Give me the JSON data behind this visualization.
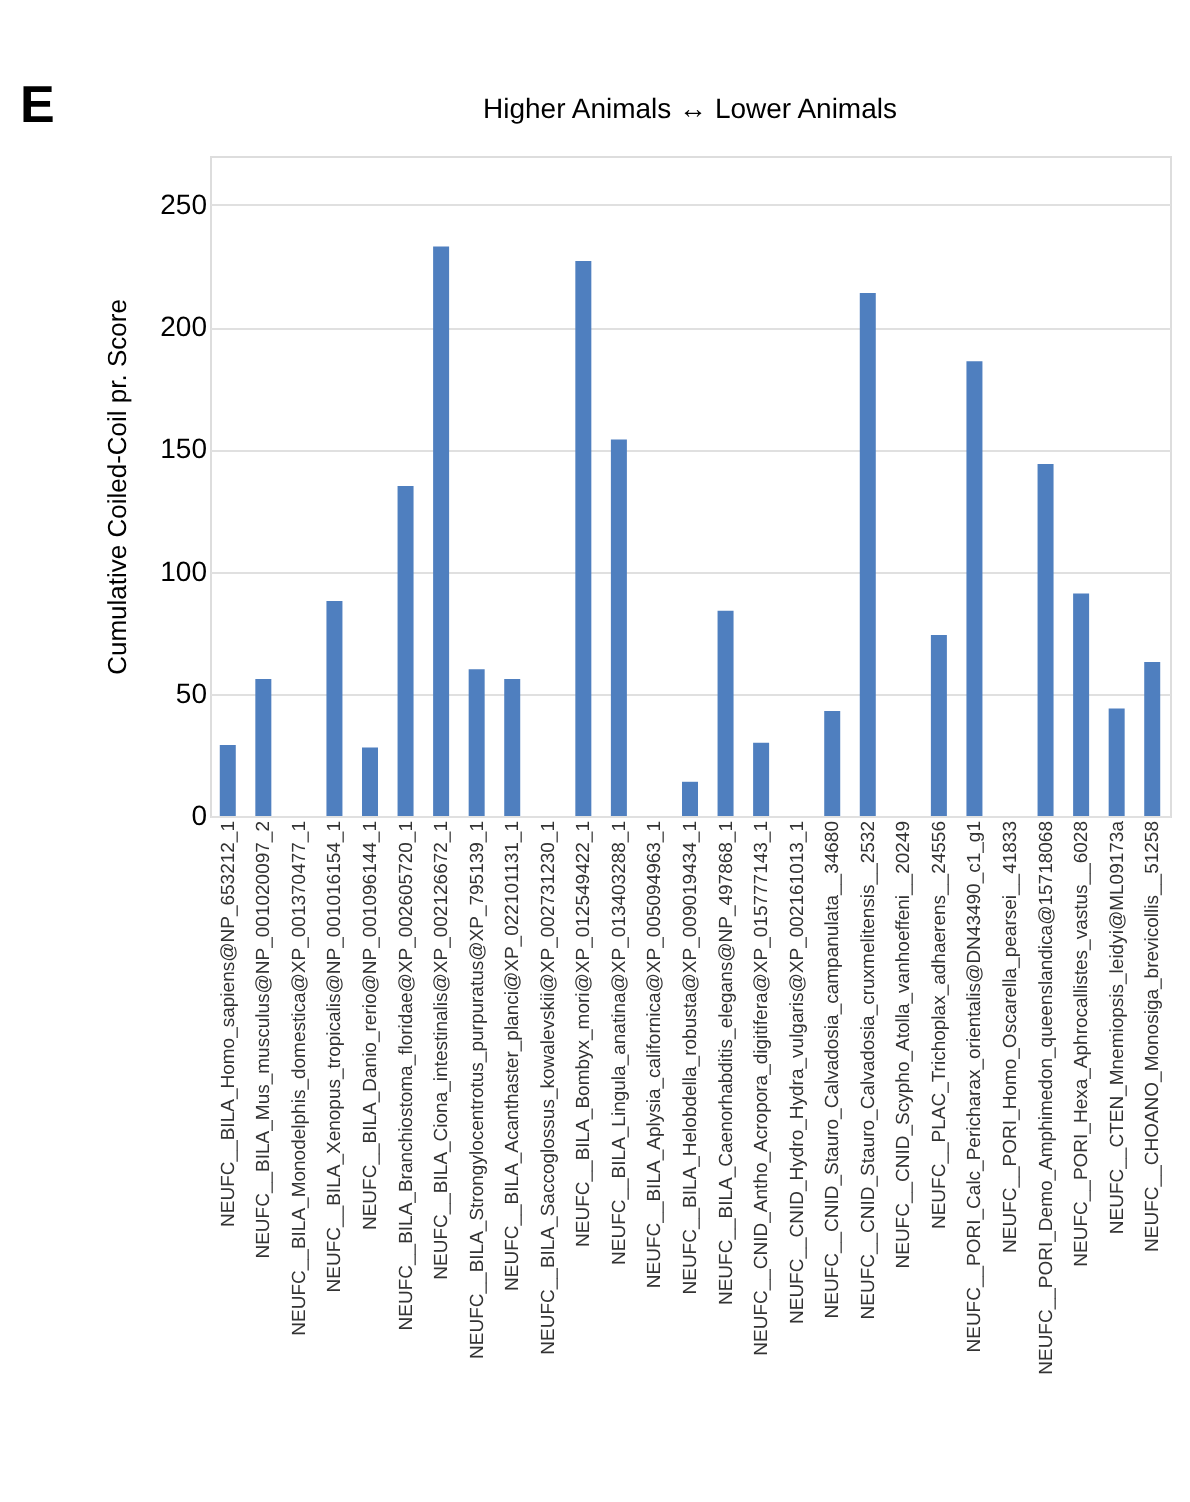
{
  "chart_data": {
    "type": "bar",
    "title": "Higher Animals ↔ Lower Animals",
    "ylabel": "Cumulative Coiled-Coil pr. Score",
    "annotations": [
      "E"
    ],
    "categories": [
      "NEUFC__BILA_Homo_sapiens@NP_653212_1",
      "NEUFC__BILA_Mus_musculus@NP_001020097_2",
      "NEUFC__BILA_Monodelphis_domestica@XP_001370477_1",
      "NEUFC__BILA_Xenopus_tropicalis@NP_001016154_1",
      "NEUFC__BILA_Danio_rerio@NP_001096144_1",
      "NEUFC__BILA_Branchiostoma_floridae@XP_002605720_1",
      "NEUFC__BILA_Ciona_intestinalis@XP_002126672_1",
      "NEUFC__BILA_Strongylocentrotus_purpuratus@XP_795139_1",
      "NEUFC__BILA_Acanthaster_planci@XP_022101131_1",
      "NEUFC__BILA_Saccoglossus_kowalevskii@XP_002731230_1",
      "NEUFC__BILA_Bombyx_mori@XP_012549422_1",
      "NEUFC__BILA_Lingula_anatina@XP_013403288_1",
      "NEUFC__BILA_Aplysia_californica@XP_005094963_1",
      "NEUFC__BILA_Helobdella_robusta@XP_009019434_1",
      "NEUFC__BILA_Caenorhabditis_elegans@NP_497868_1",
      "NEUFC__CNID_Antho_Acropora_digitifera@XP_015777143_1",
      "NEUFC__CNID_Hydro_Hydra_vulgaris@XP_002161013_1",
      "NEUFC__CNID_Stauro_Calvadosia_campanulata__34680",
      "NEUFC__CNID_Stauro_Calvadosia_cruxmelitensis__2532",
      "NEUFC__CNID_Scypho_Atolla_vanhoeffeni__20249",
      "NEUFC__PLAC_Trichoplax_adhaerens__24556",
      "NEUFC__PORI_Calc_Pericharax_orientalis@DN43490_c1_g1",
      "NEUFC__PORI_Homo_Oscarella_pearsei__41833",
      "NEUFC__PORI_Demo_Amphimedon_queenslandica@15718068",
      "NEUFC__PORI_Hexa_Aphrocallistes_vastus__6028",
      "NEUFC__CTEN_Mnemiopsis_leidyi@ML09173a",
      "NEUFC__CHOANO_Monosiga_brevicollis__51258"
    ],
    "series": [
      {
        "color": "#4f7fbf",
        "values": [
          29,
          56,
          0,
          88,
          28,
          135,
          233,
          60,
          56,
          0,
          227,
          154,
          0,
          14,
          84,
          30,
          0,
          43,
          214,
          0,
          74,
          186,
          0,
          144,
          91,
          44,
          63
        ]
      }
    ],
    "ylim": [
      0,
      270
    ],
    "yticks": [
      0,
      50,
      100,
      150,
      200,
      250
    ],
    "grid": "y",
    "legend": false
  }
}
